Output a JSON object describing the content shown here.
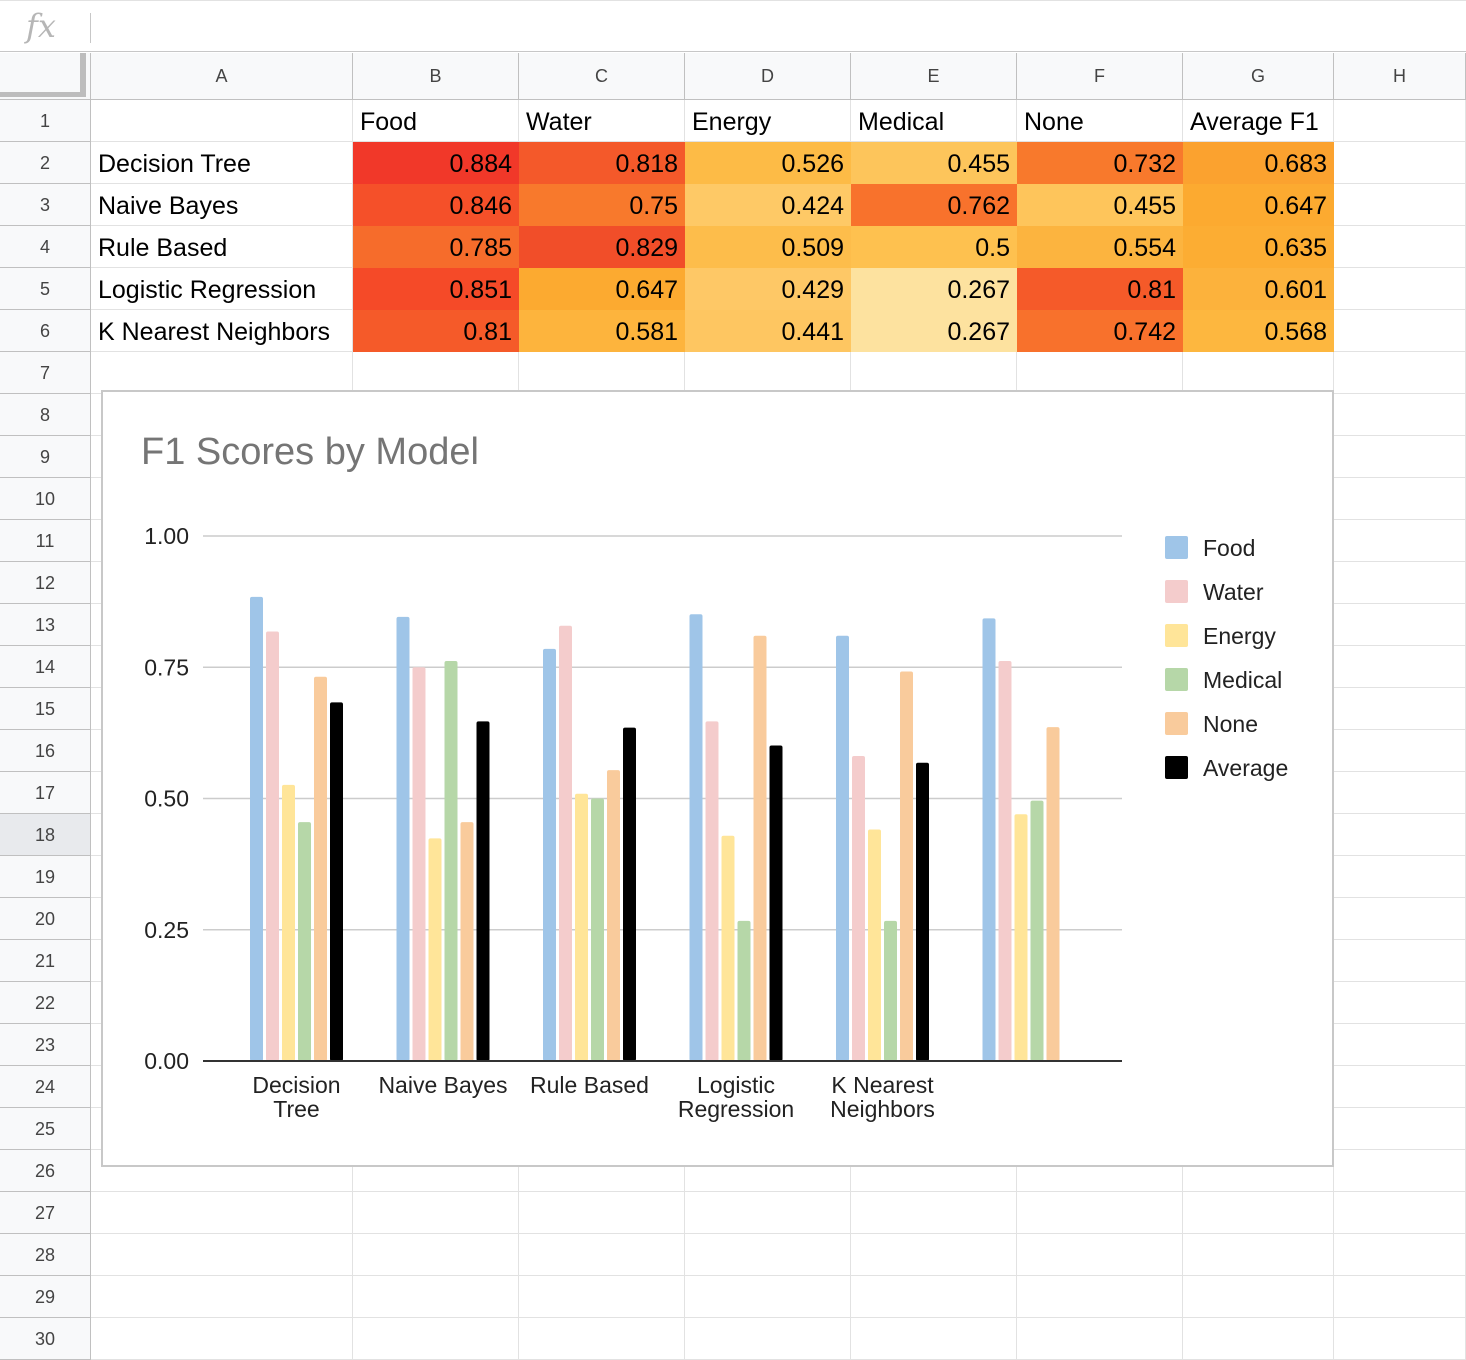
{
  "formula_bar": {
    "icon": "fx",
    "content": ""
  },
  "columns": [
    "A",
    "B",
    "C",
    "D",
    "E",
    "F",
    "G",
    "H"
  ],
  "rows": [
    "1",
    "2",
    "3",
    "4",
    "5",
    "6",
    "7",
    "8",
    "9",
    "10",
    "11",
    "12",
    "13",
    "14",
    "15",
    "16",
    "17",
    "18",
    "19",
    "20",
    "21",
    "22",
    "23",
    "24",
    "25",
    "26",
    "27",
    "28",
    "29",
    "30"
  ],
  "selected_row": "18",
  "table": {
    "headers": [
      "",
      "Food",
      "Water",
      "Energy",
      "Medical",
      "None",
      "Average F1"
    ],
    "rows": [
      [
        "Decision Tree",
        "0.884",
        "0.818",
        "0.526",
        "0.455",
        "0.732",
        "0.683"
      ],
      [
        "Naive Bayes",
        "0.846",
        "0.75",
        "0.424",
        "0.762",
        "0.455",
        "0.647"
      ],
      [
        "Rule Based",
        "0.785",
        "0.829",
        "0.509",
        "0.5",
        "0.554",
        "0.635"
      ],
      [
        "Logistic Regression",
        "0.851",
        "0.647",
        "0.429",
        "0.267",
        "0.81",
        "0.601"
      ],
      [
        "K Nearest Neighbors",
        "0.81",
        "0.581",
        "0.441",
        "0.267",
        "0.742",
        "0.568"
      ]
    ],
    "fill_colors": [
      [
        "#f13829",
        "#f4592a",
        "#fdbb46",
        "#fdc55b",
        "#f8792c",
        "#fba22f"
      ],
      [
        "#f55029",
        "#f8792c",
        "#fec966",
        "#f8722c",
        "#fec55b",
        "#fcaa30"
      ],
      [
        "#f66c2b",
        "#f14e29",
        "#fdbd4b",
        "#fec14f",
        "#fcb43f",
        "#fcad33"
      ],
      [
        "#f54a28",
        "#fcaa30",
        "#fec866",
        "#fde29f",
        "#f55a29",
        "#fcb23c"
      ],
      [
        "#f55a29",
        "#fdb43d",
        "#fec661",
        "#fde29f",
        "#f8712c",
        "#fdb73f"
      ]
    ]
  },
  "chart_data": {
    "type": "bar",
    "title": "F1 Scores by Model",
    "categories": [
      "Decision Tree",
      "Naive Bayes",
      "Rule Based",
      "Logistic Regression",
      "K Nearest Neighbors",
      ""
    ],
    "category_label_lines": [
      [
        "Decision",
        "Tree"
      ],
      [
        "Naive Bayes"
      ],
      [
        "Rule Based"
      ],
      [
        "Logistic",
        "Regression"
      ],
      [
        "K Nearest",
        "Neighbors"
      ],
      []
    ],
    "series": [
      {
        "name": "Food",
        "color": "#9fc5e8",
        "values": [
          0.884,
          0.846,
          0.785,
          0.851,
          0.81,
          0.843
        ]
      },
      {
        "name": "Water",
        "color": "#f4cccc",
        "values": [
          0.818,
          0.75,
          0.829,
          0.647,
          0.581,
          0.762
        ]
      },
      {
        "name": "Energy",
        "color": "#ffe599",
        "values": [
          0.526,
          0.424,
          0.509,
          0.429,
          0.441,
          0.47
        ]
      },
      {
        "name": "Medical",
        "color": "#b6d7a8",
        "values": [
          0.455,
          0.762,
          0.5,
          0.267,
          0.267,
          0.496
        ]
      },
      {
        "name": "None",
        "color": "#f9cb9c",
        "values": [
          0.732,
          0.455,
          0.554,
          0.81,
          0.742,
          0.636
        ]
      },
      {
        "name": "Average",
        "color": "#000000",
        "values": [
          0.683,
          0.647,
          0.635,
          0.601,
          0.568,
          null
        ]
      }
    ],
    "y_ticks": [
      "0.00",
      "0.25",
      "0.50",
      "0.75",
      "1.00"
    ],
    "ylim": [
      0,
      1
    ],
    "grid": true,
    "legend": "right"
  }
}
